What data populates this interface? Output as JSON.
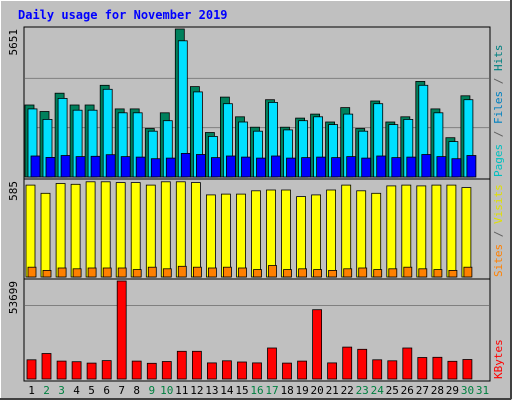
{
  "chart_data": {
    "type": "bar",
    "title": "Daily usage for November 2019",
    "categories": [
      "1",
      "2",
      "3",
      "4",
      "5",
      "6",
      "7",
      "8",
      "9",
      "10",
      "11",
      "12",
      "13",
      "14",
      "15",
      "16",
      "17",
      "18",
      "19",
      "20",
      "21",
      "22",
      "23",
      "24",
      "25",
      "26",
      "27",
      "28",
      "29",
      "30",
      "31"
    ],
    "weekend_days": [
      2,
      3,
      9,
      10,
      16,
      17,
      23,
      24,
      30,
      31
    ],
    "panels": [
      {
        "scale_label": "5651",
        "ymax": 5651,
        "side_labels": [
          {
            "text": "Pages",
            "color": "#00c0c0"
          },
          {
            "text": " / ",
            "color": "#606060"
          },
          {
            "text": "Files",
            "color": "#0080c0"
          },
          {
            "text": " / ",
            "color": "#606060"
          },
          {
            "text": "Hits",
            "color": "#008080"
          }
        ],
        "series": [
          {
            "name": "Hits",
            "color": "#00805c",
            "values": [
              2750,
              2500,
              3200,
              2750,
              2750,
              3500,
              2600,
              2600,
              1850,
              2450,
              5651,
              3450,
              1700,
              3050,
              2300,
              1900,
              2950,
              1900,
              2250,
              2400,
              2100,
              2650,
              1850,
              2900,
              2100,
              2300,
              3650,
              2600,
              1500,
              3100
            ]
          },
          {
            "name": "Files",
            "color": "#00e0ff",
            "values": [
              2600,
              2200,
              3000,
              2550,
              2550,
              3350,
              2450,
              2450,
              1750,
              2150,
              5200,
              3250,
              1550,
              2800,
              2100,
              1750,
              2850,
              1800,
              2150,
              2300,
              2000,
              2400,
              1750,
              2800,
              2000,
              2200,
              3500,
              2450,
              1350,
              2950
            ]
          },
          {
            "name": "Pages",
            "color": "#0000ff",
            "values": [
              800,
              750,
              820,
              780,
              790,
              850,
              780,
              760,
              700,
              720,
              900,
              860,
              740,
              800,
              760,
              720,
              800,
              720,
              740,
              760,
              740,
              780,
              720,
              800,
              740,
              760,
              860,
              780,
              700,
              820
            ]
          }
        ]
      },
      {
        "scale_label": "585",
        "ymax": 585,
        "side_labels": [
          {
            "text": "Sites",
            "color": "#ff8000"
          },
          {
            "text": " / ",
            "color": "#606060"
          },
          {
            "text": "Visits",
            "color": "#e0e000"
          }
        ],
        "series": [
          {
            "name": "Visits",
            "color": "#ffff00",
            "values": [
              560,
              510,
              570,
              565,
              580,
              580,
              575,
              575,
              560,
              580,
              580,
              575,
              500,
              505,
              505,
              525,
              530,
              530,
              490,
              500,
              530,
              560,
              525,
              510,
              555,
              560,
              555,
              560,
              560,
              545
            ]
          },
          {
            "name": "Sites",
            "color": "#ff8000",
            "values": [
              60,
              40,
              55,
              50,
              55,
              55,
              55,
              45,
              60,
              50,
              65,
              60,
              55,
              60,
              55,
              45,
              70,
              45,
              50,
              45,
              40,
              50,
              55,
              45,
              50,
              60,
              50,
              45,
              40,
              60
            ]
          }
        ]
      },
      {
        "scale_label": "53699",
        "ymax": 53699,
        "side_labels": [
          {
            "text": "KBytes",
            "color": "#ff0000"
          }
        ],
        "series": [
          {
            "name": "KBytes",
            "color": "#ff0000",
            "values": [
              10500,
              14000,
              9800,
              9500,
              8700,
              10100,
              53699,
              9800,
              8600,
              9600,
              15200,
              15200,
              8800,
              10000,
              9300,
              8800,
              17000,
              8700,
              9800,
              38000,
              8800,
              17500,
              16300,
              10500,
              10000,
              17000,
              11800,
              11900,
              9700,
              10700
            ]
          }
        ]
      }
    ]
  },
  "colors": {
    "frame_bg": "#c0c0c0",
    "plot_bg": "#c0c0c0",
    "grid": "#808080",
    "title": "#0000ff",
    "weekday_label": "#000000",
    "weekend_label": "#008040"
  }
}
